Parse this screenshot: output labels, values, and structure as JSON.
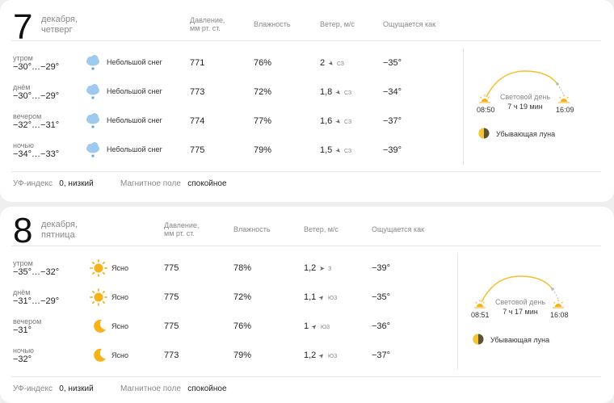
{
  "days": [
    {
      "number": "7",
      "date_line": "декабря,",
      "weekday": "четверг",
      "headers": {
        "pressure_l1": "Давление,",
        "pressure_l2": "мм рт. ст.",
        "humidity": "Влажность",
        "wind": "Ветер, м/с",
        "feels": "Ощущается как"
      },
      "rows": [
        {
          "period": "утром",
          "temp": "−30°…−29°",
          "icon": "snow-cloud-icon",
          "condition": "Небольшой снег",
          "pressure": "771",
          "humidity": "76%",
          "wind_speed": "2",
          "wind_dir": "СЗ",
          "feels": "−35°"
        },
        {
          "period": "днём",
          "temp": "−30°…−29°",
          "icon": "snow-cloud-icon",
          "condition": "Небольшой снег",
          "pressure": "773",
          "humidity": "72%",
          "wind_speed": "1,8",
          "wind_dir": "СЗ",
          "feels": "−34°"
        },
        {
          "period": "вечером",
          "temp": "−32°…−31°",
          "icon": "snow-cloud-icon",
          "condition": "Небольшой снег",
          "pressure": "774",
          "humidity": "77%",
          "wind_speed": "1,6",
          "wind_dir": "СЗ",
          "feels": "−37°"
        },
        {
          "period": "ночью",
          "temp": "−34°…−33°",
          "icon": "snow-cloud-icon",
          "condition": "Небольшой снег",
          "pressure": "775",
          "humidity": "79%",
          "wind_speed": "1,5",
          "wind_dir": "СЗ",
          "feels": "−39°"
        }
      ],
      "sun": {
        "label": "Световой день",
        "length": "7 ч 19 мин",
        "sunrise": "08:50",
        "sunset": "16:09"
      },
      "moon": "Убывающая луна",
      "uv_label": "УФ-индекс",
      "uv_value": "0, низкий",
      "magnetic_label": "Магнитное поле",
      "magnetic_value": "спокойное"
    },
    {
      "number": "8",
      "date_line": "декабря,",
      "weekday": "пятница",
      "headers": {
        "pressure_l1": "Давление,",
        "pressure_l2": "мм рт. ст.",
        "humidity": "Влажность",
        "wind": "Ветер, м/с",
        "feels": "Ощущается как"
      },
      "rows": [
        {
          "period": "утром",
          "temp": "−35°…−32°",
          "icon": "sun-icon",
          "condition": "Ясно",
          "pressure": "775",
          "humidity": "78%",
          "wind_speed": "1,2",
          "wind_dir": "З",
          "feels": "−39°"
        },
        {
          "period": "днём",
          "temp": "−31°…−29°",
          "icon": "sun-icon",
          "condition": "Ясно",
          "pressure": "775",
          "humidity": "72%",
          "wind_speed": "1,1",
          "wind_dir": "ЮЗ",
          "feels": "−35°"
        },
        {
          "period": "вечером",
          "temp": "−31°",
          "icon": "moon-icon",
          "condition": "Ясно",
          "pressure": "775",
          "humidity": "76%",
          "wind_speed": "1",
          "wind_dir": "ЮЗ",
          "feels": "−36°"
        },
        {
          "period": "ночью",
          "temp": "−32°",
          "icon": "moon-icon",
          "condition": "Ясно",
          "pressure": "773",
          "humidity": "79%",
          "wind_speed": "1,2",
          "wind_dir": "ЮЗ",
          "feels": "−37°"
        }
      ],
      "sun": {
        "label": "Световой день",
        "length": "7 ч 17 мин",
        "sunrise": "08:51",
        "sunset": "16:08"
      },
      "moon": "Убывающая луна",
      "uv_label": "УФ-индекс",
      "uv_value": "0, низкий",
      "magnetic_label": "Магнитное поле",
      "magnetic_value": "спокойное"
    }
  ],
  "colors": {
    "sun": "#f6b21b",
    "snow_cloud": "#9fc9ee",
    "snowflake": "#59a6e6",
    "sun_arc": "#f3c02f",
    "moon_dark": "#5c5430",
    "wind_dir_text": "#888888"
  }
}
